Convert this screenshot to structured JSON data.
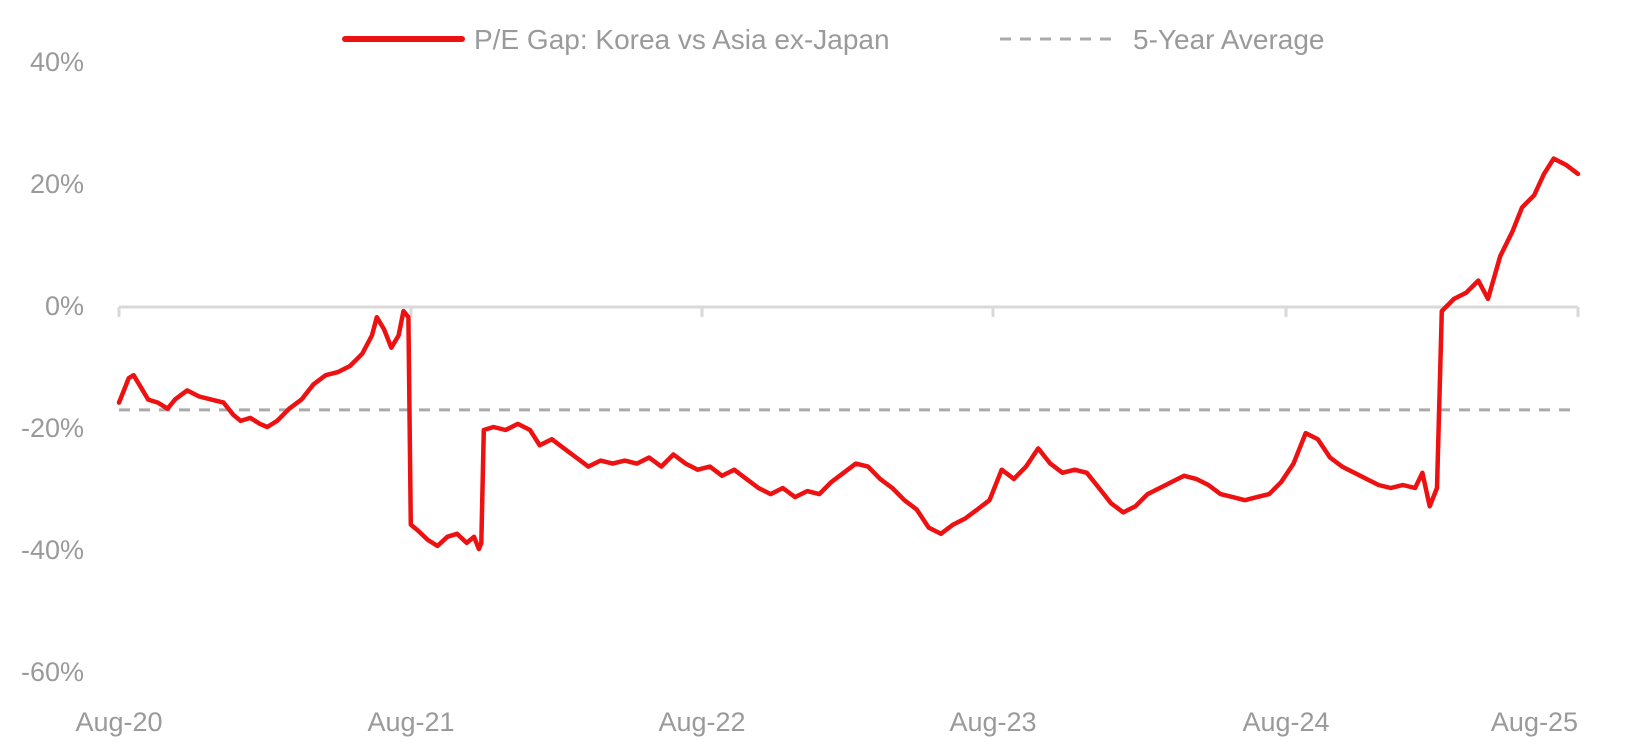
{
  "chart_data": {
    "type": "line",
    "title": "",
    "xlabel": "",
    "ylabel": "",
    "x_ticks": [
      "Aug-20",
      "Aug-21",
      "Aug-22",
      "Aug-23",
      "Aug-24",
      "Aug-25"
    ],
    "y_ticks": [
      "40%",
      "20%",
      "0%",
      "-20%",
      "-40%",
      "-60%"
    ],
    "ylim": [
      -60,
      40
    ],
    "xlim": [
      0,
      60
    ],
    "x_unit": "months since Aug-20",
    "grid": false,
    "legend_position": "top-center",
    "series": [
      {
        "name": "P/E Gap: Korea vs Asia ex-Japan",
        "color": "#ee1111",
        "style": "solid",
        "points": [
          [
            0,
            -16
          ],
          [
            0.2,
            -14
          ],
          [
            0.4,
            -12
          ],
          [
            0.6,
            -11.5
          ],
          [
            0.9,
            -13.5
          ],
          [
            1.2,
            -15.5
          ],
          [
            1.6,
            -16
          ],
          [
            2.0,
            -17
          ],
          [
            2.3,
            -15.5
          ],
          [
            2.8,
            -14
          ],
          [
            3.3,
            -15
          ],
          [
            3.8,
            -15.5
          ],
          [
            4.3,
            -16
          ],
          [
            4.7,
            -18
          ],
          [
            5.0,
            -19
          ],
          [
            5.4,
            -18.5
          ],
          [
            5.8,
            -19.5
          ],
          [
            6.1,
            -20
          ],
          [
            6.5,
            -19
          ],
          [
            7.0,
            -17
          ],
          [
            7.5,
            -15.5
          ],
          [
            8.0,
            -13
          ],
          [
            8.5,
            -11.5
          ],
          [
            9.0,
            -11
          ],
          [
            9.5,
            -10
          ],
          [
            10.0,
            -8
          ],
          [
            10.4,
            -5
          ],
          [
            10.6,
            -2
          ],
          [
            10.9,
            -4
          ],
          [
            11.2,
            -7
          ],
          [
            11.5,
            -5
          ],
          [
            11.7,
            -1
          ],
          [
            11.9,
            -2
          ],
          [
            12.0,
            -36
          ],
          [
            12.3,
            -37
          ],
          [
            12.7,
            -38.5
          ],
          [
            13.1,
            -39.5
          ],
          [
            13.5,
            -38
          ],
          [
            13.9,
            -37.5
          ],
          [
            14.3,
            -39
          ],
          [
            14.6,
            -38
          ],
          [
            14.8,
            -40
          ],
          [
            14.9,
            -39
          ],
          [
            15.0,
            -20.5
          ],
          [
            15.4,
            -20
          ],
          [
            15.9,
            -20.5
          ],
          [
            16.4,
            -19.5
          ],
          [
            16.9,
            -20.5
          ],
          [
            17.3,
            -23
          ],
          [
            17.8,
            -22
          ],
          [
            18.3,
            -23.5
          ],
          [
            18.8,
            -25
          ],
          [
            19.3,
            -26.5
          ],
          [
            19.8,
            -25.5
          ],
          [
            20.3,
            -26
          ],
          [
            20.8,
            -25.5
          ],
          [
            21.3,
            -26
          ],
          [
            21.8,
            -25
          ],
          [
            22.3,
            -26.5
          ],
          [
            22.8,
            -24.5
          ],
          [
            23.3,
            -26
          ],
          [
            23.8,
            -27
          ],
          [
            24.3,
            -26.5
          ],
          [
            24.8,
            -28
          ],
          [
            25.3,
            -27
          ],
          [
            25.8,
            -28.5
          ],
          [
            26.3,
            -30
          ],
          [
            26.8,
            -31
          ],
          [
            27.3,
            -30
          ],
          [
            27.8,
            -31.5
          ],
          [
            28.3,
            -30.5
          ],
          [
            28.8,
            -31
          ],
          [
            29.3,
            -29
          ],
          [
            29.8,
            -27.5
          ],
          [
            30.3,
            -26
          ],
          [
            30.8,
            -26.5
          ],
          [
            31.3,
            -28.5
          ],
          [
            31.8,
            -30
          ],
          [
            32.3,
            -32
          ],
          [
            32.8,
            -33.5
          ],
          [
            33.3,
            -36.5
          ],
          [
            33.8,
            -37.5
          ],
          [
            34.3,
            -36
          ],
          [
            34.8,
            -35
          ],
          [
            35.3,
            -33.5
          ],
          [
            35.8,
            -32
          ],
          [
            36.3,
            -27
          ],
          [
            36.8,
            -28.5
          ],
          [
            37.3,
            -26.5
          ],
          [
            37.8,
            -23.5
          ],
          [
            38.3,
            -26
          ],
          [
            38.8,
            -27.5
          ],
          [
            39.3,
            -27
          ],
          [
            39.8,
            -27.5
          ],
          [
            40.3,
            -30
          ],
          [
            40.8,
            -32.5
          ],
          [
            41.3,
            -34
          ],
          [
            41.8,
            -33
          ],
          [
            42.3,
            -31
          ],
          [
            42.8,
            -30
          ],
          [
            43.3,
            -29
          ],
          [
            43.8,
            -28
          ],
          [
            44.3,
            -28.5
          ],
          [
            44.8,
            -29.5
          ],
          [
            45.3,
            -31
          ],
          [
            45.8,
            -31.5
          ],
          [
            46.3,
            -32
          ],
          [
            46.8,
            -31.5
          ],
          [
            47.3,
            -31
          ],
          [
            47.8,
            -29
          ],
          [
            48.3,
            -26
          ],
          [
            48.8,
            -21
          ],
          [
            49.3,
            -22
          ],
          [
            49.8,
            -25
          ],
          [
            50.3,
            -26.5
          ],
          [
            50.8,
            -27.5
          ],
          [
            51.3,
            -28.5
          ],
          [
            51.8,
            -29.5
          ],
          [
            52.3,
            -30
          ],
          [
            52.8,
            -29.5
          ],
          [
            53.3,
            -30
          ],
          [
            53.6,
            -27.5
          ],
          [
            53.9,
            -33
          ],
          [
            54.2,
            -30
          ],
          [
            54.4,
            -1
          ],
          [
            54.9,
            1
          ],
          [
            55.4,
            2
          ],
          [
            55.9,
            4
          ],
          [
            56.3,
            1
          ],
          [
            56.8,
            8
          ],
          [
            57.3,
            12
          ],
          [
            57.7,
            16
          ],
          [
            58.2,
            18
          ],
          [
            58.6,
            21.5
          ],
          [
            59.0,
            24
          ],
          [
            59.5,
            23
          ],
          [
            60,
            21.5
          ]
        ]
      },
      {
        "name": "5-Year Average",
        "color": "#aaaaaa",
        "style": "dashed",
        "points": [
          [
            0,
            -17.2
          ],
          [
            60,
            -17.2
          ]
        ]
      }
    ]
  }
}
